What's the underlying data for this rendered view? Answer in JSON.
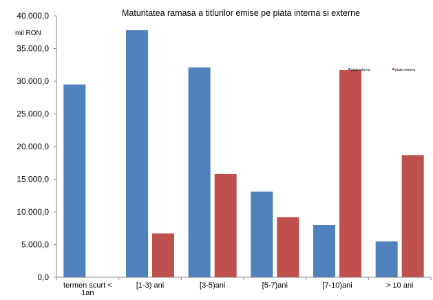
{
  "chart_data": {
    "type": "bar",
    "title": "Maturitatea ramasa a titlurilor emise pe piata interna si externe",
    "ylabel": "mil RON",
    "xlabel": "",
    "categories": [
      "termen scurt < 1an",
      "[1-3) ani",
      "[3-5)ani",
      "[5-7)ani",
      "[7-10)ani",
      "> 10 ani"
    ],
    "series": [
      {
        "name": "piata interna",
        "color": "#4f81bd",
        "values": [
          29500,
          37800,
          32100,
          13100,
          8000,
          5500
        ]
      },
      {
        "name": "piata externa",
        "color": "#c0504d",
        "values": [
          0,
          6700,
          15800,
          9200,
          31700,
          18700
        ]
      }
    ],
    "ylim": [
      0,
      40000
    ],
    "yticks": [
      0,
      5000,
      10000,
      15000,
      20000,
      25000,
      30000,
      35000,
      40000
    ],
    "ytick_labels": [
      "0,0",
      "5.000,0",
      "10.000,0",
      "15.000,0",
      "20.000,0",
      "25.000,0",
      "30.000,0",
      "35.000,0",
      "40.000,0"
    ],
    "legend_position": "top-right",
    "grid": false
  }
}
